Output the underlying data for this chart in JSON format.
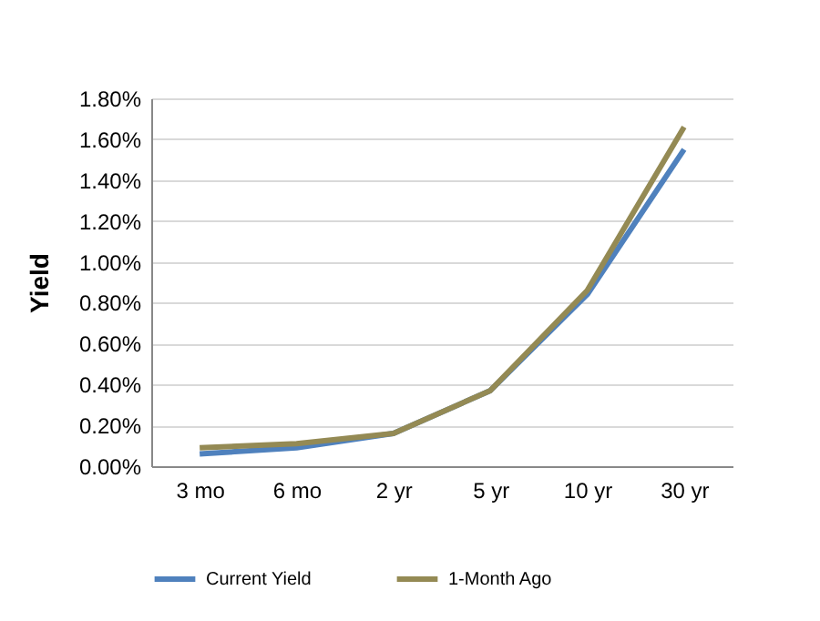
{
  "chart_data": {
    "type": "line",
    "ylabel": "Yield",
    "categories": [
      "3 mo",
      "6 mo",
      "2 yr",
      "5 yr",
      "10 yr",
      "30 yr"
    ],
    "series": [
      {
        "name": "Current Yield",
        "color": "#4f81bd",
        "values": [
          0.06,
          0.09,
          0.16,
          0.37,
          0.84,
          1.55
        ]
      },
      {
        "name": "1-Month Ago",
        "color": "#948a54",
        "values": [
          0.09,
          0.11,
          0.16,
          0.37,
          0.86,
          1.66
        ]
      }
    ],
    "ylim": [
      0,
      1.8
    ],
    "yticks": [
      {
        "value": 0,
        "label": "0.00%"
      },
      {
        "value": 0.2,
        "label": "0.20%"
      },
      {
        "value": 0.4,
        "label": "0.40%"
      },
      {
        "value": 0.6,
        "label": "0.60%"
      },
      {
        "value": 0.8,
        "label": "0.80%"
      },
      {
        "value": 1,
        "label": "1.00%"
      },
      {
        "value": 1.2,
        "label": "1.20%"
      },
      {
        "value": 1.4,
        "label": "1.40%"
      },
      {
        "value": 1.6,
        "label": "1.60%"
      },
      {
        "value": 1.8,
        "label": "1.80%"
      }
    ],
    "grid": "y",
    "legend": "bottom",
    "marker": "none",
    "line_style": "solid"
  }
}
